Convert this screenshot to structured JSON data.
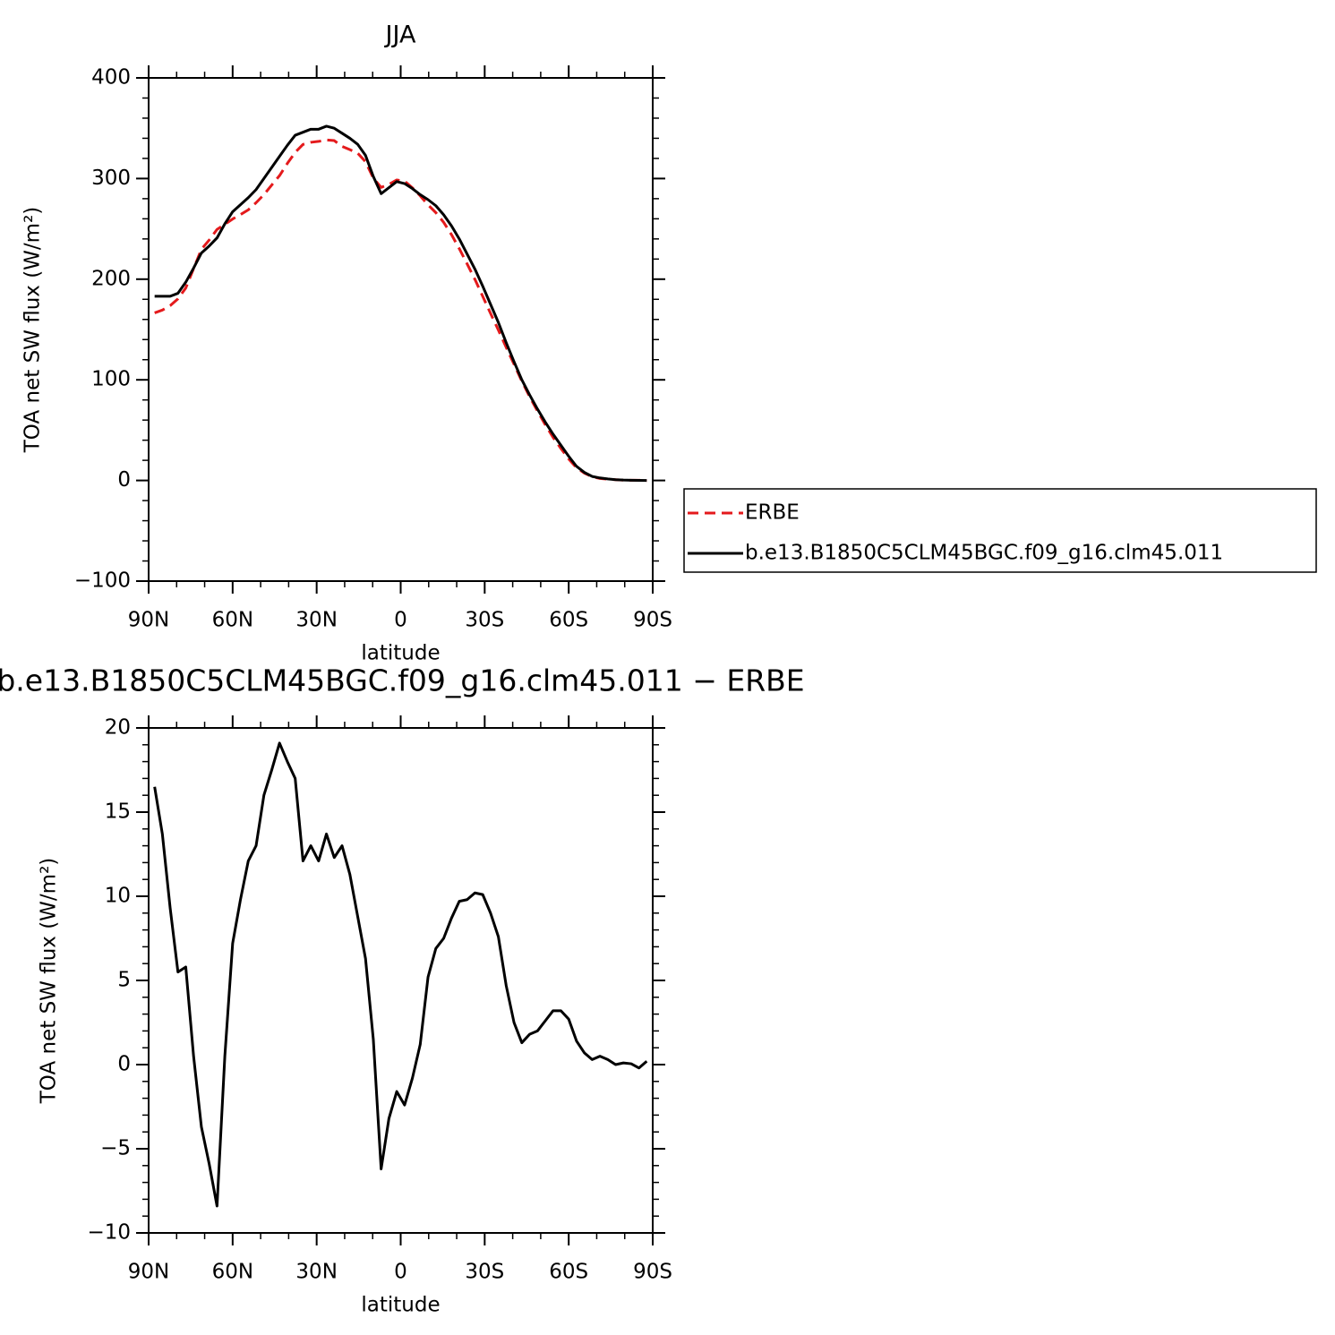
{
  "chart_data": [
    {
      "type": "line",
      "title": "JJA",
      "xlabel": "latitude",
      "ylabel": "TOA net SW flux (W/m²)",
      "x": [
        87.86,
        85.1,
        82.31,
        79.53,
        76.74,
        73.95,
        71.16,
        68.37,
        65.58,
        62.79,
        60.0,
        57.21,
        54.42,
        51.63,
        48.84,
        46.05,
        43.26,
        40.47,
        37.67,
        34.88,
        32.09,
        29.3,
        26.51,
        23.72,
        20.93,
        18.14,
        15.35,
        12.56,
        9.77,
        6.98,
        4.19,
        1.4,
        -1.4,
        -4.19,
        -6.98,
        -9.77,
        -12.56,
        -15.35,
        -18.14,
        -20.93,
        -23.72,
        -26.51,
        -29.3,
        -32.09,
        -34.88,
        -37.67,
        -40.47,
        -43.26,
        -46.05,
        -48.84,
        -51.63,
        -54.42,
        -57.21,
        -60.0,
        -62.79,
        -65.58,
        -68.37,
        -71.16,
        -73.95,
        -76.74,
        -79.53,
        -82.31,
        -85.1,
        -87.86
      ],
      "series": [
        {
          "name": "ERBE",
          "color": "#e41a1c",
          "dashed": true,
          "values": [
            166.5,
            169.3,
            173.7,
            180.5,
            191.2,
            210.5,
            229.7,
            238.9,
            249.4,
            254.5,
            259.8,
            264.2,
            268.9,
            276,
            284,
            293.5,
            302.9,
            315,
            326,
            333.9,
            336,
            336.9,
            338.3,
            337.7,
            332,
            328.7,
            325.2,
            316.7,
            300.5,
            291.2,
            294.2,
            298.6,
            297.4,
            290.8,
            282.8,
            273.8,
            266.1,
            256.5,
            244.3,
            230.3,
            215.2,
            199.8,
            182.9,
            166,
            149.4,
            132.3,
            115.5,
            98.7,
            83.2,
            69,
            55.4,
            42.8,
            31.8,
            21.3,
            12.6,
            7.3,
            3.7,
            2,
            1.2,
            0.8,
            0.3,
            0.15,
            0.25,
            -0.2
          ]
        },
        {
          "name": "b.e13.B1850C5CLM45BGC.f09_g16.clm45.011",
          "color": "#000000",
          "dashed": false,
          "values": [
            183,
            183,
            183,
            186,
            197,
            211,
            226,
            233,
            241,
            255,
            267,
            274,
            281,
            289,
            300,
            311,
            322,
            333,
            343,
            346,
            349,
            349,
            352,
            350,
            345,
            340,
            334,
            323,
            302,
            285,
            291,
            297,
            295,
            290,
            284,
            279,
            273,
            264,
            253,
            240,
            225,
            210,
            193,
            175,
            157,
            137,
            118,
            100,
            85,
            71,
            58,
            46,
            35,
            24,
            14,
            8,
            4,
            2.5,
            1.5,
            0.8,
            0.4,
            0.2,
            0.05,
            0
          ]
        }
      ],
      "xlim": [
        90,
        -90
      ],
      "xticks": [
        {
          "value": 90,
          "label": "90N"
        },
        {
          "value": 60,
          "label": "60N"
        },
        {
          "value": 30,
          "label": "30N"
        },
        0,
        {
          "value": -30,
          "label": "30S"
        },
        {
          "value": -60,
          "label": "60S"
        },
        {
          "value": -90,
          "label": "90S"
        }
      ],
      "ylim": [
        -100,
        400
      ],
      "yticks": [
        {
          "value": -100,
          "label": "−100"
        },
        0,
        100,
        200,
        300,
        400
      ],
      "legend": true
    },
    {
      "type": "line",
      "title": "b.e13.B1850C5CLM45BGC.f09_g16.clm45.011 − ERBE",
      "xlabel": "latitude",
      "ylabel": "TOA net SW flux (W/m²)",
      "x": [
        87.86,
        85.1,
        82.31,
        79.53,
        76.74,
        73.95,
        71.16,
        68.37,
        65.58,
        62.79,
        60.0,
        57.21,
        54.42,
        51.63,
        48.84,
        46.05,
        43.26,
        40.47,
        37.67,
        34.88,
        32.09,
        29.3,
        26.51,
        23.72,
        20.93,
        18.14,
        15.35,
        12.56,
        9.77,
        6.98,
        4.19,
        1.4,
        -1.4,
        -4.19,
        -6.98,
        -9.77,
        -12.56,
        -15.35,
        -18.14,
        -20.93,
        -23.72,
        -26.51,
        -29.3,
        -32.09,
        -34.88,
        -37.67,
        -40.47,
        -43.26,
        -46.05,
        -48.84,
        -51.63,
        -54.42,
        -57.21,
        -60.0,
        -62.79,
        -65.58,
        -68.37,
        -71.16,
        -73.95,
        -76.74,
        -79.53,
        -82.31,
        -85.1,
        -87.86
      ],
      "series": [
        {
          "color": "#000000",
          "dashed": false,
          "values": [
            16.5,
            13.7,
            9.3,
            5.5,
            5.8,
            0.5,
            -3.7,
            -5.9,
            -8.4,
            0.5,
            7.2,
            9.8,
            12.1,
            13,
            16,
            17.5,
            19.1,
            18,
            17,
            12.1,
            13,
            12.1,
            13.7,
            12.3,
            13,
            11.3,
            8.8,
            6.3,
            1.5,
            -6.2,
            -3.2,
            -1.6,
            -2.4,
            -0.8,
            1.2,
            5.2,
            6.9,
            7.5,
            8.7,
            9.7,
            9.8,
            10.2,
            10.1,
            9,
            7.6,
            4.7,
            2.5,
            1.3,
            1.8,
            2,
            2.6,
            3.2,
            3.2,
            2.7,
            1.4,
            0.7,
            0.3,
            0.5,
            0.3,
            0,
            0.1,
            0.05,
            -0.2,
            0.2
          ]
        }
      ],
      "xlim": [
        90,
        -90
      ],
      "xticks": [
        {
          "value": 90,
          "label": "90N"
        },
        {
          "value": 60,
          "label": "60N"
        },
        {
          "value": 30,
          "label": "30N"
        },
        0,
        {
          "value": -30,
          "label": "30S"
        },
        {
          "value": -60,
          "label": "60S"
        },
        {
          "value": -90,
          "label": "90S"
        }
      ],
      "ylim": [
        -10,
        20
      ],
      "yticks": [
        {
          "value": -10,
          "label": "−10"
        },
        {
          "value": -5,
          "label": "−5"
        },
        0,
        5,
        10,
        15,
        20
      ],
      "legend": false
    }
  ]
}
